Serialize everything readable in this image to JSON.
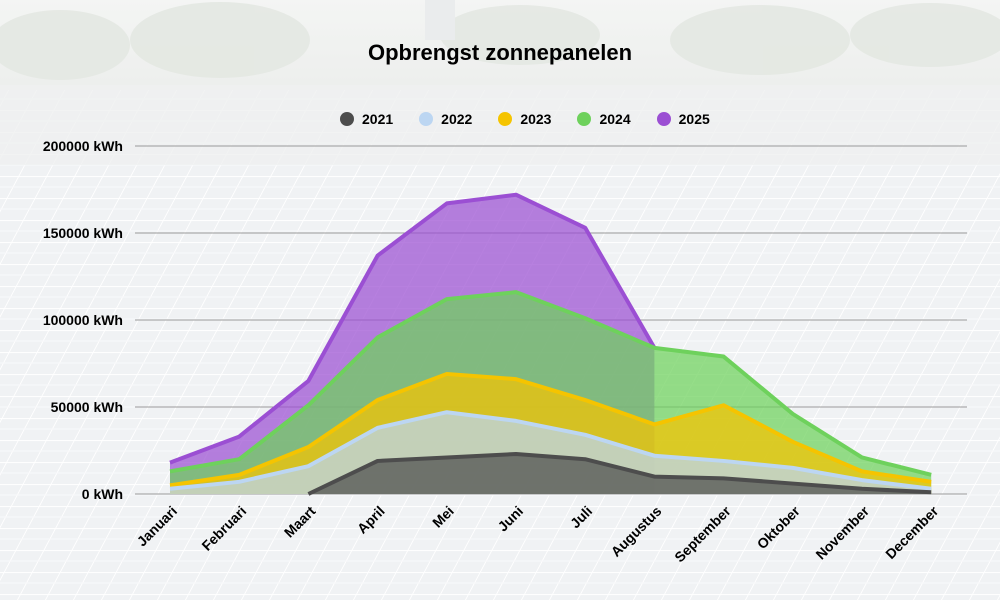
{
  "chart_data": {
    "type": "area",
    "title": "Opbrengst zonnepanelen",
    "xlabel": "",
    "ylabel": "",
    "ylim": [
      0,
      200000
    ],
    "y_ticks": [
      "0 kWh",
      "50000 kWh",
      "100000 kWh",
      "150000 kWh",
      "200000 kWh"
    ],
    "y_tick_values": [
      0,
      50000,
      100000,
      150000,
      200000
    ],
    "grid": true,
    "legend_position": "top",
    "stacked": false,
    "categories": [
      "Januari",
      "Februari",
      "Maart",
      "April",
      "Mei",
      "Juni",
      "Juli",
      "Augustus",
      "September",
      "Oktober",
      "November",
      "December"
    ],
    "series": [
      {
        "name": "2025",
        "color": "#9b4fd3",
        "values": [
          18000,
          33000,
          65000,
          137000,
          167000,
          172000,
          153000,
          84000,
          null,
          null,
          null,
          null
        ]
      },
      {
        "name": "2024",
        "color": "#6ed15c",
        "values": [
          13000,
          20000,
          51000,
          90000,
          112000,
          116000,
          101000,
          84000,
          79000,
          46000,
          21000,
          11000
        ]
      },
      {
        "name": "2023",
        "color": "#f5c400",
        "values": [
          5000,
          11000,
          27000,
          54000,
          69000,
          66000,
          54000,
          40000,
          51000,
          30000,
          13000,
          7000
        ]
      },
      {
        "name": "2022",
        "color": "#bcd6f2",
        "values": [
          3000,
          7000,
          16000,
          38000,
          47000,
          42000,
          34000,
          22000,
          19000,
          15000,
          8000,
          3000
        ]
      },
      {
        "name": "2021",
        "color": "#4d4d4d",
        "values": [
          null,
          null,
          0,
          19000,
          21000,
          23000,
          20000,
          10000,
          9000,
          6000,
          3000,
          1000
        ]
      }
    ],
    "legend": [
      "2021",
      "2022",
      "2023",
      "2024",
      "2025"
    ]
  }
}
